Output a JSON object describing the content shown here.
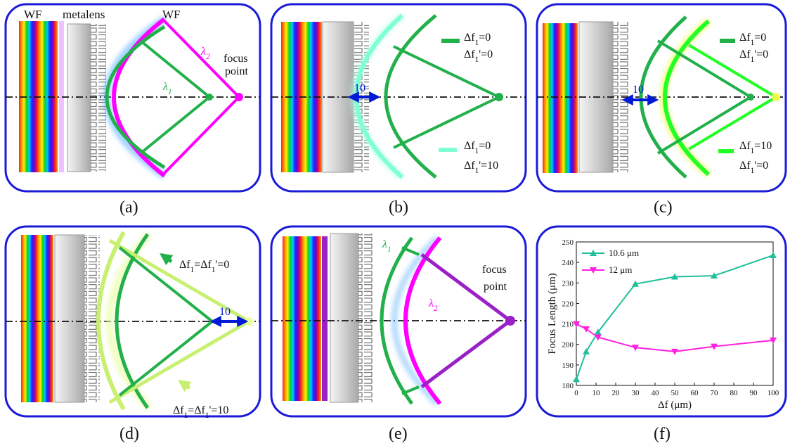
{
  "panels": {
    "a": {
      "caption": "(a)",
      "wf_left": "WF",
      "metalens": "metalens",
      "wf_right": "WF",
      "lambda1": "λ1",
      "lambda2": "λ2",
      "focus_line1": "focus",
      "focus_line2": "point"
    },
    "b": {
      "caption": "(b)",
      "shift": "10",
      "legend_top_1": "Δf1=0",
      "legend_top_2": "Δf1'=0",
      "legend_bot_1": "Δf1=0",
      "legend_bot_2": "Δf1'=10"
    },
    "c": {
      "caption": "(c)",
      "shift": "10",
      "legend_top_1": "Δf1=0",
      "legend_top_2": "Δf1'=0",
      "legend_bot_1": "Δf1=10",
      "legend_bot_2": "Δf1'=0"
    },
    "d": {
      "caption": "(d)",
      "shift": "10",
      "legend_top": "Δf1=Δf1'=0",
      "legend_bot": "Δf1=Δf1'=10"
    },
    "e": {
      "caption": "(e)",
      "lambda1": "λ1",
      "lambda2": "λ2",
      "focus_line1": "focus",
      "focus_line2": "point"
    },
    "f": {
      "caption": "(f)"
    }
  },
  "colors": {
    "green": "#22b04a",
    "magenta": "#ff00ff",
    "cyan": "#7fffd4",
    "yellowgreen": "#c8f070",
    "lime": "#22ff22",
    "purple": "#9a20c8",
    "blue_arrow": "#0018d8",
    "frame": "#1a1ad8",
    "teal_series": "#1fbf9a",
    "magenta_series": "#ff20e0"
  },
  "chart_data": {
    "type": "line",
    "xlabel": "Δf (μm)",
    "ylabel": "Focus Length (μm)",
    "xlim": [
      0,
      100
    ],
    "ylim": [
      180,
      250
    ],
    "xticks": [
      0,
      10,
      20,
      30,
      40,
      50,
      60,
      70,
      80,
      90,
      100
    ],
    "yticks": [
      180,
      190,
      200,
      210,
      220,
      230,
      240,
      250
    ],
    "legend_position": "top-left",
    "grid": false,
    "series": [
      {
        "name": "10.6 μm",
        "marker": "triangle-up",
        "color": "#1fbf9a",
        "x": [
          0,
          5,
          11,
          30,
          50,
          70,
          100
        ],
        "y": [
          183,
          196.5,
          206,
          229.5,
          233,
          233.5,
          243.5
        ]
      },
      {
        "name": "12 μm",
        "marker": "triangle-down",
        "color": "#ff20e0",
        "x": [
          0,
          5,
          11,
          30,
          50,
          70,
          100
        ],
        "y": [
          210,
          207.5,
          203.5,
          198.5,
          196.5,
          199,
          202
        ]
      }
    ]
  }
}
